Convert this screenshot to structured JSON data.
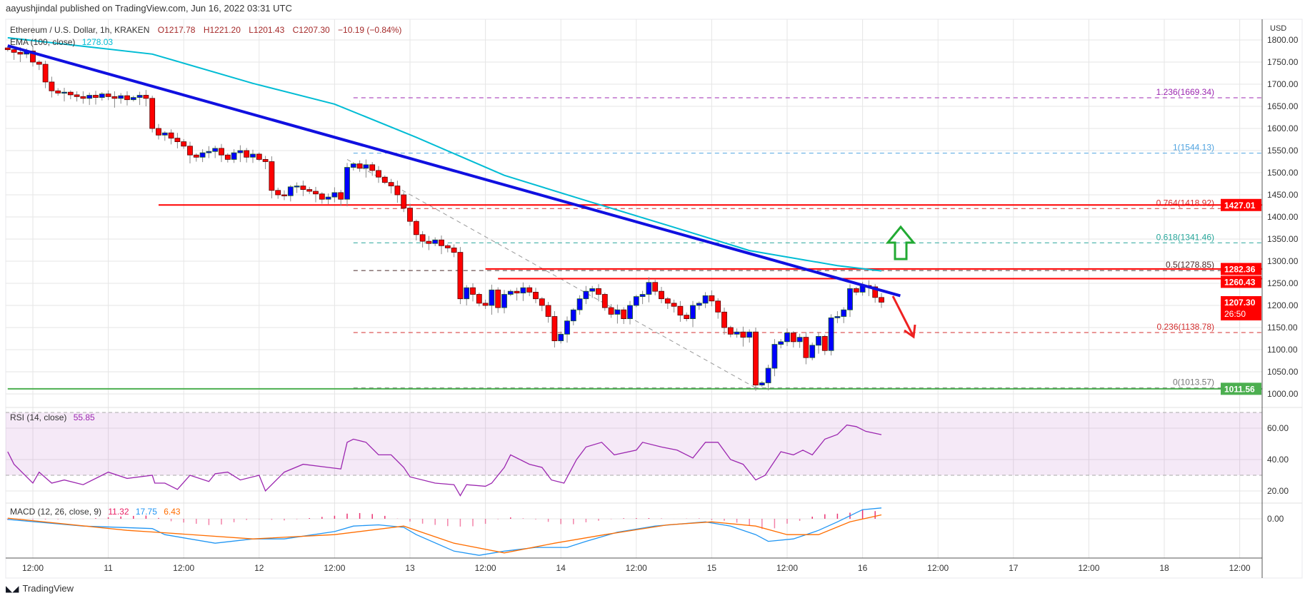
{
  "publisher": "aayushjindal published on TradingView.com, Jun 16, 2022 03:31 UTC",
  "legend": {
    "symbol": "Ethereum / U.S. Dollar, 1h, KRAKEN",
    "open": "O1217.78",
    "high": "H1221.20",
    "low": "L1201.43",
    "close": "C1207.30",
    "change": "−10.19 (−0.84%)",
    "ema_label": "EMA (100, close)",
    "ema_value": "1278.03",
    "rsi_label": "RSI (14, close)",
    "rsi_value": "55.85",
    "macd_label": "MACD (12, 26, close, 9)",
    "macd_hist": "11.32",
    "macd_value": "17.75",
    "macd_signal": "6.43"
  },
  "price_axis": {
    "currency": "USD",
    "labels": [
      "1800.00",
      "1750.00",
      "1700.00",
      "1650.00",
      "1600.00",
      "1550.00",
      "1500.00",
      "1450.00",
      "1400.00",
      "1350.00",
      "1300.00",
      "1250.00",
      "1200.00",
      "1150.00",
      "1100.00",
      "1050.00",
      "1000.00"
    ],
    "rsi_labels": [
      "60.00",
      "40.00",
      "20.00"
    ],
    "macd_labels": [
      "0.00"
    ],
    "badges": [
      {
        "text": "1427.01",
        "price": 1427.01,
        "color": "#ff0000"
      },
      {
        "text": "1282.36",
        "price": 1282.36,
        "color": "#ff0000"
      },
      {
        "text": "1260.43",
        "price": 1260.43,
        "color": "#ff0000"
      },
      {
        "text": "1207.30",
        "sub": "26:50",
        "price": 1207.3,
        "color": "#ff0000"
      },
      {
        "text": "1011.56",
        "price": 1011.56,
        "color": "#4caf50"
      }
    ]
  },
  "time_axis": [
    "12:00",
    "11",
    "12:00",
    "12",
    "12:00",
    "13",
    "12:00",
    "14",
    "12:00",
    "15",
    "12:00",
    "16",
    "12:00",
    "17",
    "12:00",
    "18",
    "12:00"
  ],
  "colors": {
    "up": "#0000ff",
    "down": "#ff0000",
    "ema": "#00bcd4",
    "trend": "#1010e0",
    "rsi": "#9c27b0",
    "macd": "#2196f3",
    "signal": "#ff6d00",
    "hist": "#e91e63"
  },
  "chart_data": {
    "type": "candlestick",
    "title": "Ethereum / U.S. Dollar, 1h, KRAKEN",
    "closes": [
      1778,
      1772,
      1768,
      1775,
      1750,
      1745,
      1705,
      1685,
      1680,
      1682,
      1676,
      1672,
      1668,
      1675,
      1670,
      1678,
      1672,
      1668,
      1674,
      1665,
      1670,
      1675,
      1668,
      1600,
      1585,
      1590,
      1578,
      1570,
      1560,
      1540,
      1535,
      1545,
      1548,
      1555,
      1540,
      1530,
      1545,
      1550,
      1535,
      1542,
      1530,
      1525,
      1460,
      1450,
      1448,
      1468,
      1470,
      1462,
      1458,
      1452,
      1440,
      1445,
      1455,
      1440,
      1512,
      1520,
      1510,
      1518,
      1505,
      1490,
      1478,
      1470,
      1450,
      1420,
      1390,
      1360,
      1345,
      1340,
      1348,
      1335,
      1330,
      1320,
      1215,
      1240,
      1225,
      1205,
      1200,
      1235,
      1195,
      1225,
      1232,
      1228,
      1240,
      1230,
      1215,
      1200,
      1175,
      1120,
      1135,
      1165,
      1190,
      1215,
      1232,
      1238,
      1225,
      1195,
      1180,
      1190,
      1170,
      1200,
      1220,
      1225,
      1252,
      1232,
      1215,
      1205,
      1198,
      1178,
      1170,
      1200,
      1205,
      1222,
      1210,
      1185,
      1150,
      1135,
      1140,
      1128,
      1140,
      1020,
      1025,
      1058,
      1112,
      1118,
      1138,
      1118,
      1128,
      1082,
      1110,
      1130,
      1098,
      1172,
      1175,
      1190,
      1238,
      1230,
      1245,
      1242,
      1218,
      1207.3
    ],
    "first_open": 1782,
    "ema100": [
      [
        0,
        1805
      ],
      [
        23,
        1768
      ],
      [
        39,
        1702
      ],
      [
        52,
        1655
      ],
      [
        65,
        1580
      ],
      [
        79,
        1494
      ],
      [
        92,
        1437
      ],
      [
        105,
        1381
      ],
      [
        118,
        1324
      ],
      [
        132,
        1290
      ],
      [
        139,
        1278.03
      ]
    ],
    "trendline": [
      [
        0,
        1787
      ],
      [
        142,
        1222
      ]
    ],
    "support_resistance": [
      {
        "price": 1427.01,
        "from": 24,
        "color": "#ff0000"
      },
      {
        "price": 1282.36,
        "from": 76,
        "color": "#ff0000"
      },
      {
        "price": 1260.43,
        "from": 78,
        "color": "#ff0000"
      },
      {
        "price": 1011.56,
        "from": 0,
        "color": "#4caf50"
      }
    ],
    "fib_from": 55,
    "fib_levels": [
      {
        "label": "1.236(1669.34)",
        "price": 1669.34,
        "color": "#9c27b0"
      },
      {
        "label": "1(1544.13)",
        "price": 1544.13,
        "color": "#4fa3e0"
      },
      {
        "label": "0.764(1418.92)",
        "price": 1418.92,
        "color": "#d32f2f"
      },
      {
        "label": "0.618(1341.46)",
        "price": 1341.46,
        "color": "#26a69a"
      },
      {
        "label": "0.5(1278.85)",
        "price": 1278.85,
        "color": "#4a2a2a"
      },
      {
        "label": "0.236(1138.78)",
        "price": 1138.78,
        "color": "#d32f2f"
      },
      {
        "label": "0(1013.57)",
        "price": 1013.57,
        "color": "#777777"
      }
    ],
    "fib_diagonal": [
      [
        54,
        1530
      ],
      [
        119,
        1013.57
      ]
    ],
    "rsi": [
      [
        0,
        45
      ],
      [
        1,
        37
      ],
      [
        4,
        25
      ],
      [
        5,
        32
      ],
      [
        7,
        25
      ],
      [
        9,
        27
      ],
      [
        12,
        24
      ],
      [
        15,
        30
      ],
      [
        16,
        32
      ],
      [
        19,
        28
      ],
      [
        23,
        30
      ],
      [
        23.4,
        25
      ],
      [
        25,
        25
      ],
      [
        27,
        21
      ],
      [
        29,
        30
      ],
      [
        32,
        26
      ],
      [
        33,
        31
      ],
      [
        35,
        32
      ],
      [
        37,
        27
      ],
      [
        40,
        30
      ],
      [
        41,
        20
      ],
      [
        44,
        32
      ],
      [
        47,
        37
      ],
      [
        51,
        35
      ],
      [
        53,
        34
      ],
      [
        54,
        51
      ],
      [
        55,
        53
      ],
      [
        57,
        51
      ],
      [
        59,
        43
      ],
      [
        61,
        43
      ],
      [
        63,
        35
      ],
      [
        64,
        29
      ],
      [
        68,
        25
      ],
      [
        71,
        24
      ],
      [
        72,
        17
      ],
      [
        73,
        24
      ],
      [
        76,
        23
      ],
      [
        77,
        25
      ],
      [
        79,
        35
      ],
      [
        80,
        43
      ],
      [
        83,
        37
      ],
      [
        85,
        35
      ],
      [
        86.5,
        27
      ],
      [
        88.5,
        25
      ],
      [
        90.5,
        40
      ],
      [
        92,
        48
      ],
      [
        94.5,
        51
      ],
      [
        96.5,
        43
      ],
      [
        100,
        46
      ],
      [
        101,
        51
      ],
      [
        104,
        48
      ],
      [
        106.5,
        46
      ],
      [
        109,
        41
      ],
      [
        111,
        51
      ],
      [
        113,
        51
      ],
      [
        115,
        40
      ],
      [
        117,
        37
      ],
      [
        119,
        27
      ],
      [
        120.5,
        30
      ],
      [
        123,
        45
      ],
      [
        125,
        43
      ],
      [
        126.5,
        46
      ],
      [
        128,
        43
      ],
      [
        130,
        53
      ],
      [
        132,
        56
      ],
      [
        133.5,
        62
      ],
      [
        135,
        61
      ],
      [
        136.5,
        58
      ],
      [
        139,
        55.85
      ]
    ],
    "rsi_band": [
      30,
      70
    ],
    "macd": [
      [
        0,
        -1
      ],
      [
        12,
        -12
      ],
      [
        23,
        -16
      ],
      [
        25,
        -26
      ],
      [
        33,
        -40
      ],
      [
        39,
        -33
      ],
      [
        44,
        -33
      ],
      [
        52,
        -21
      ],
      [
        55,
        -12
      ],
      [
        59,
        -10
      ],
      [
        63,
        -14
      ],
      [
        65,
        -26
      ],
      [
        71,
        -53
      ],
      [
        75,
        -60
      ],
      [
        79,
        -53
      ],
      [
        84,
        -47
      ],
      [
        89,
        -47
      ],
      [
        92,
        -37
      ],
      [
        97,
        -22
      ],
      [
        103,
        -12
      ],
      [
        111,
        -5
      ],
      [
        115,
        -12
      ],
      [
        119,
        -26
      ],
      [
        121,
        -37
      ],
      [
        125,
        -33
      ],
      [
        129,
        -19
      ],
      [
        132,
        -5
      ],
      [
        136,
        15
      ],
      [
        139,
        17.75
      ]
    ],
    "signal": [
      [
        0,
        1
      ],
      [
        19,
        -19
      ],
      [
        25,
        -23
      ],
      [
        39,
        -33
      ],
      [
        52,
        -26
      ],
      [
        63,
        -12
      ],
      [
        71,
        -40
      ],
      [
        79,
        -56
      ],
      [
        87,
        -40
      ],
      [
        95,
        -26
      ],
      [
        105,
        -10
      ],
      [
        112,
        -5
      ],
      [
        119,
        -12
      ],
      [
        124,
        -26
      ],
      [
        129,
        -26
      ],
      [
        134,
        -5
      ],
      [
        139,
        6.43
      ]
    ]
  },
  "footer": {
    "logo_text": "TradingView"
  }
}
